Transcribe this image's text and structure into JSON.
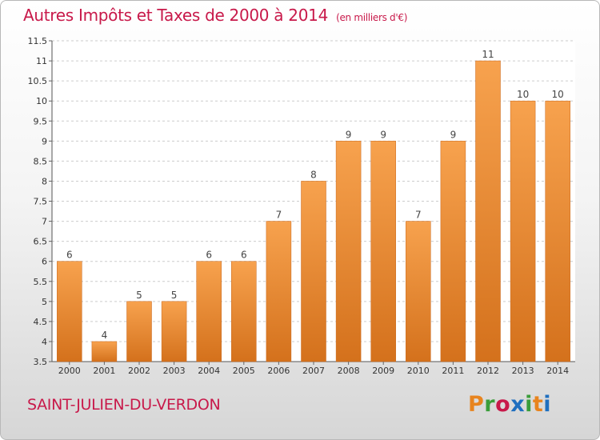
{
  "chart_data": {
    "type": "bar",
    "title": "Autres Impôts et Taxes de 2000 à 2014",
    "unit": "(en milliers d'€)",
    "categories": [
      "2000",
      "2001",
      "2002",
      "2003",
      "2004",
      "2005",
      "2006",
      "2007",
      "2008",
      "2009",
      "2010",
      "2011",
      "2012",
      "2013",
      "2014"
    ],
    "values": [
      6,
      4,
      5,
      5,
      6,
      6,
      7,
      8,
      9,
      9,
      7,
      9,
      11,
      10,
      10
    ],
    "ylim": [
      3.5,
      11.5
    ],
    "yticks": [
      "3.5",
      "4",
      "4.5",
      "5",
      "5.5",
      "6",
      "6.5",
      "7",
      "7.5",
      "8",
      "8.5",
      "9",
      "9.5",
      "10",
      "10.5",
      "11",
      "11.5"
    ],
    "grid": true,
    "bar_color_top": "#f7a24e",
    "bar_color_bottom": "#d4711c"
  },
  "footer": {
    "location": "SAINT-JULIEN-DU-VERDON",
    "logo_text": "Proxiti",
    "logo_colors": [
      "#e8841e",
      "#3a9d3a",
      "#c8194a",
      "#1f6fbf",
      "#3a9d3a",
      "#e8841e",
      "#1f6fbf"
    ]
  },
  "colors": {
    "title": "#c8194a",
    "grid": "#cccccc",
    "axis_text": "#333333"
  }
}
